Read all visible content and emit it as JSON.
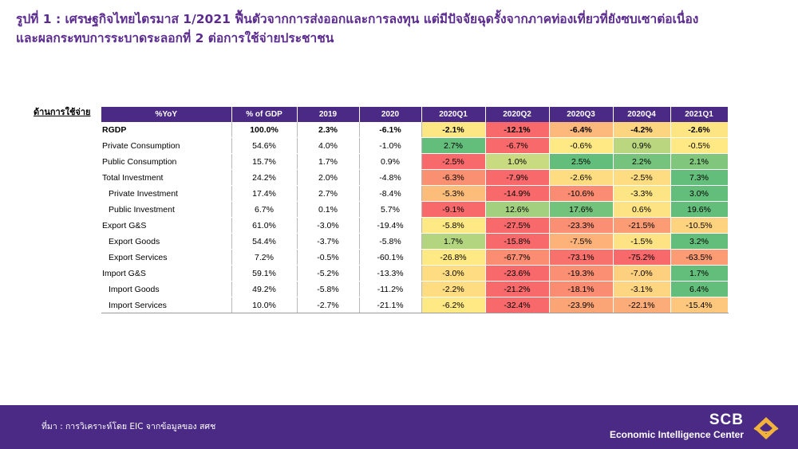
{
  "title": {
    "line1": "รูปที่ 1 : เศรษฐกิจไทยไตรมาส 1/2021 ฟื้นตัวจากการส่งออกและการลงทุน แต่มีปัจจัยฉุดรั้งจากภาคท่องเที่ยวที่ยังซบเซาต่อเนื่อง",
    "line2": "และผลกระทบการระบาดระลอกที่ 2 ต่อการใช้จ่ายประชาชน"
  },
  "side_label": "ด้านการใช้จ่าย",
  "table": {
    "headers": [
      "%YoY",
      "% of GDP",
      "2019",
      "2020",
      "2020Q1",
      "2020Q2",
      "2020Q3",
      "2020Q4",
      "2021Q1"
    ],
    "rows": [
      {
        "label": "RGDP",
        "indent": false,
        "bold": true,
        "gdp": "100.0%",
        "y2019": "2.3%",
        "y2020": "-6.1%",
        "q": [
          "-2.1%",
          "-12.1%",
          "-6.4%",
          "-4.2%",
          "-2.6%"
        ],
        "colors": [
          "#fde784",
          "#f8696b",
          "#fdb87b",
          "#fdd581",
          "#fde583"
        ]
      },
      {
        "label": "Private Consumption",
        "indent": false,
        "bold": false,
        "gdp": "54.6%",
        "y2019": "4.0%",
        "y2020": "-1.0%",
        "q": [
          "2.7%",
          "-6.7%",
          "-0.6%",
          "0.9%",
          "-0.5%"
        ],
        "colors": [
          "#63be7b",
          "#f8696b",
          "#ffe985",
          "#bad77f",
          "#ffe985"
        ]
      },
      {
        "label": "Public Consumption",
        "indent": false,
        "bold": false,
        "gdp": "15.7%",
        "y2019": "1.7%",
        "y2020": "0.9%",
        "q": [
          "-2.5%",
          "1.0%",
          "2.5%",
          "2.2%",
          "2.1%"
        ],
        "colors": [
          "#f8696b",
          "#c9db81",
          "#63be7b",
          "#75c37c",
          "#80c67d"
        ]
      },
      {
        "label": "Total Investment",
        "indent": false,
        "bold": false,
        "gdp": "24.2%",
        "y2019": "2.0%",
        "y2020": "-4.8%",
        "q": [
          "-6.3%",
          "-7.9%",
          "-2.6%",
          "-2.5%",
          "7.3%"
        ],
        "colors": [
          "#fa9072",
          "#f8696b",
          "#fedd82",
          "#fedd82",
          "#63be7b"
        ]
      },
      {
        "label": "Private Investment",
        "indent": true,
        "bold": false,
        "gdp": "17.4%",
        "y2019": "2.7%",
        "y2020": "-8.4%",
        "q": [
          "-5.3%",
          "-14.9%",
          "-10.6%",
          "-3.3%",
          "3.0%"
        ],
        "colors": [
          "#fcbd7b",
          "#f8696b",
          "#f98c72",
          "#fde484",
          "#63be7b"
        ]
      },
      {
        "label": "Public Investment",
        "indent": true,
        "bold": false,
        "gdp": "6.7%",
        "y2019": "0.1%",
        "y2020": "5.7%",
        "q": [
          "-9.1%",
          "12.6%",
          "17.6%",
          "0.6%",
          "19.6%"
        ],
        "colors": [
          "#f8696b",
          "#a2d07f",
          "#74c37c",
          "#fde383",
          "#63be7b"
        ]
      },
      {
        "label": "Export G&S",
        "indent": false,
        "bold": false,
        "gdp": "61.0%",
        "y2019": "-3.0%",
        "y2020": "-19.4%",
        "q": [
          "-5.8%",
          "-27.5%",
          "-23.3%",
          "-21.5%",
          "-10.5%"
        ],
        "colors": [
          "#ffe985",
          "#f8696b",
          "#fa8f73",
          "#fb9c75",
          "#fdd380"
        ]
      },
      {
        "label": "Export Goods",
        "indent": true,
        "bold": false,
        "gdp": "54.4%",
        "y2019": "-3.7%",
        "y2020": "-5.8%",
        "q": [
          "1.7%",
          "-15.8%",
          "-7.5%",
          "-1.5%",
          "3.2%"
        ],
        "colors": [
          "#b3d580",
          "#f8696b",
          "#fcb279",
          "#fde383",
          "#63be7b"
        ]
      },
      {
        "label": "Export Services",
        "indent": true,
        "bold": false,
        "gdp": "7.2%",
        "y2019": "-0.5%",
        "y2020": "-60.1%",
        "q": [
          "-26.8%",
          "-67.7%",
          "-73.1%",
          "-75.2%",
          "-63.5%"
        ],
        "colors": [
          "#ffe985",
          "#fa8d72",
          "#f8716c",
          "#f8696b",
          "#fb9c75"
        ]
      },
      {
        "label": "Import G&S",
        "indent": false,
        "bold": false,
        "gdp": "59.1%",
        "y2019": "-5.2%",
        "y2020": "-13.3%",
        "q": [
          "-3.0%",
          "-23.6%",
          "-19.3%",
          "-7.0%",
          "1.7%"
        ],
        "colors": [
          "#fedd82",
          "#f8696b",
          "#fa8f73",
          "#fdd07f",
          "#63be7b"
        ]
      },
      {
        "label": "Import Goods",
        "indent": true,
        "bold": false,
        "gdp": "49.2%",
        "y2019": "-5.8%",
        "y2020": "-11.2%",
        "q": [
          "-2.2%",
          "-21.2%",
          "-18.1%",
          "-3.1%",
          "6.4%"
        ],
        "colors": [
          "#fedc82",
          "#f8696b",
          "#fa8c72",
          "#fed580",
          "#63be7b"
        ]
      },
      {
        "label": "Import Services",
        "indent": true,
        "bold": false,
        "gdp": "10.0%",
        "y2019": "-2.7%",
        "y2020": "-21.1%",
        "q": [
          "-6.2%",
          "-32.4%",
          "-23.9%",
          "-22.1%",
          "-15.4%"
        ],
        "colors": [
          "#ffe985",
          "#f8696b",
          "#fba476",
          "#fbac78",
          "#fdc87d"
        ]
      }
    ]
  },
  "footer": {
    "source": "ที่มา : การวิเคราะห์โดย EIC จากข้อมูลของ สศช",
    "brand_line1": "SCB",
    "brand_line2": "Economic Intelligence Center",
    "logo_icon": "scb-roof-logo-icon",
    "logo_color": "#f2b33d"
  }
}
